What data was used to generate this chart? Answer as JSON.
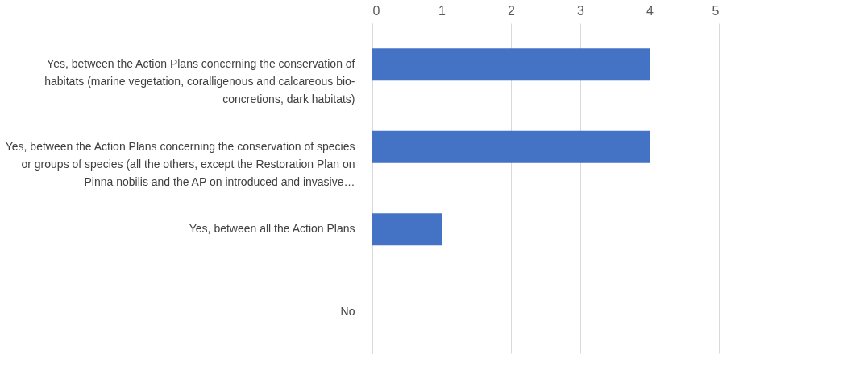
{
  "chart_data": {
    "type": "bar",
    "orientation": "horizontal",
    "categories": [
      "Yes, between the Action Plans concerning the conservation of habitats (marine vegetation, coralligenous and calcareous bio-concretions, dark habitats)",
      "Yes, between the Action Plans concerning the conservation of species or groups of species (all the others, except the Restoration Plan on Pinna nobilis and the AP on introduced and invasive…",
      "Yes, between all the Action Plans",
      "No"
    ],
    "values": [
      4,
      4,
      1,
      0
    ],
    "color": "#4472c4",
    "xlim": [
      0,
      5
    ],
    "xticks": [
      0,
      1,
      2,
      3,
      4,
      5
    ],
    "grid": "x"
  }
}
